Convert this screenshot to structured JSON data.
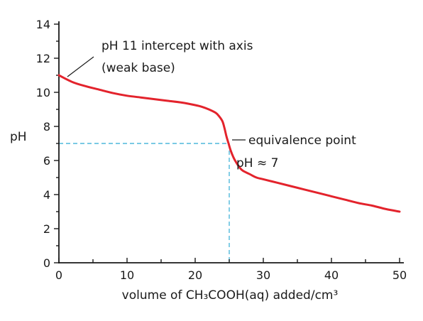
{
  "chart_data": {
    "type": "line",
    "title": "",
    "xlabel": "volume of CH₃COOH(aq) added/cm³",
    "ylabel": "pH",
    "xlim": [
      0,
      50
    ],
    "ylim": [
      0,
      14
    ],
    "xticks": [
      0,
      10,
      20,
      30,
      40,
      50
    ],
    "yticks": [
      0,
      2,
      4,
      6,
      8,
      10,
      12,
      14
    ],
    "grid": false,
    "series": [
      {
        "color": "#e3232c",
        "x": [
          0,
          2,
          4,
          6,
          8,
          10,
          12,
          14,
          16,
          18,
          20,
          21,
          22,
          23,
          23.5,
          24,
          24.3,
          24.6,
          24.9,
          25.2,
          25.6,
          26,
          26.5,
          27,
          28,
          29,
          30,
          32,
          34,
          36,
          38,
          40,
          42,
          44,
          46,
          48,
          50
        ],
        "y": [
          11.0,
          10.6,
          10.35,
          10.15,
          9.95,
          9.8,
          9.7,
          9.6,
          9.5,
          9.4,
          9.25,
          9.15,
          9.0,
          8.8,
          8.6,
          8.3,
          7.9,
          7.4,
          7.0,
          6.6,
          6.2,
          5.9,
          5.6,
          5.4,
          5.2,
          5.0,
          4.9,
          4.7,
          4.5,
          4.3,
          4.1,
          3.9,
          3.7,
          3.5,
          3.35,
          3.15,
          3.0
        ]
      }
    ],
    "guides": {
      "color": "#4fb8dc",
      "equivalence_x": 25,
      "equivalence_y": 7
    },
    "annotations": [
      {
        "lines": [
          "pH 11 intercept with axis",
          "(weak base)"
        ],
        "points_to": [
          0,
          11
        ]
      },
      {
        "lines": [
          "equivalence point",
          "pH ≈ 7"
        ],
        "points_to": [
          25,
          7
        ]
      }
    ]
  }
}
